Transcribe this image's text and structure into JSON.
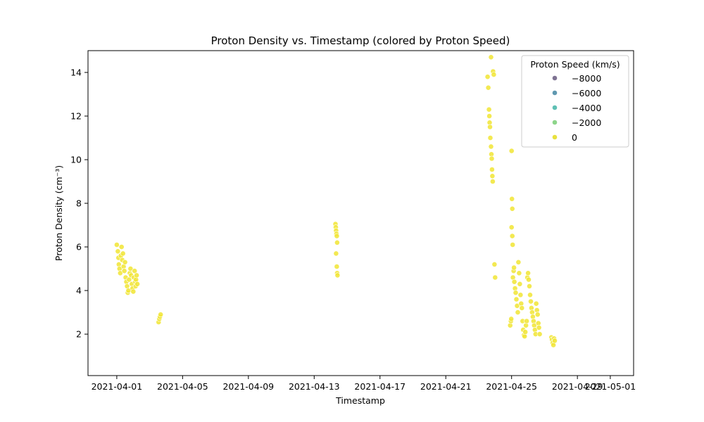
{
  "chart_data": {
    "type": "scatter",
    "title": "Proton Density vs. Timestamp (colored by Proton Speed)",
    "xlabel": "Timestamp",
    "ylabel": "Proton Density (cm⁻³)",
    "xlim": [
      "2021-03-30T06:00",
      "2021-05-02T10:00"
    ],
    "ylim": [
      0.1,
      15
    ],
    "x_ticks": [
      "2021-04-01",
      "2021-04-05",
      "2021-04-09",
      "2021-04-13",
      "2021-04-17",
      "2021-04-21",
      "2021-04-25",
      "2021-04-29",
      "2021-05-01"
    ],
    "y_ticks": [
      2,
      4,
      6,
      8,
      10,
      12,
      14
    ],
    "grid": false,
    "point_color": "#f1e534",
    "legend": {
      "title": "Proton Speed (km/s)",
      "placement": "top-right",
      "entries": [
        {
          "label": "−8000",
          "color": "#7f7393"
        },
        {
          "label": "−6000",
          "color": "#5f98b0"
        },
        {
          "label": "−4000",
          "color": "#5fc0b4"
        },
        {
          "label": "−2000",
          "color": "#8dd58a"
        },
        {
          "label": "0",
          "color": "#e8e13e"
        }
      ]
    },
    "points": [
      {
        "t": "2021-04-01T00:00",
        "y": 6.1
      },
      {
        "t": "2021-04-01T01:30",
        "y": 5.8
      },
      {
        "t": "2021-04-01T02:30",
        "y": 5.5
      },
      {
        "t": "2021-04-01T03:00",
        "y": 5.2
      },
      {
        "t": "2021-04-01T04:00",
        "y": 5.0
      },
      {
        "t": "2021-04-01T05:00",
        "y": 4.8
      },
      {
        "t": "2021-04-01T06:00",
        "y": 5.6
      },
      {
        "t": "2021-04-01T07:00",
        "y": 6.0
      },
      {
        "t": "2021-04-01T08:00",
        "y": 5.4
      },
      {
        "t": "2021-04-01T09:00",
        "y": 5.7
      },
      {
        "t": "2021-04-01T10:00",
        "y": 5.1
      },
      {
        "t": "2021-04-01T11:00",
        "y": 4.9
      },
      {
        "t": "2021-04-01T12:00",
        "y": 5.3
      },
      {
        "t": "2021-04-01T13:00",
        "y": 4.6
      },
      {
        "t": "2021-04-01T14:00",
        "y": 4.4
      },
      {
        "t": "2021-04-01T15:00",
        "y": 4.2
      },
      {
        "t": "2021-04-01T16:00",
        "y": 3.9
      },
      {
        "t": "2021-04-01T17:00",
        "y": 4.0
      },
      {
        "t": "2021-04-01T18:00",
        "y": 4.5
      },
      {
        "t": "2021-04-01T19:00",
        "y": 4.8
      },
      {
        "t": "2021-04-01T20:00",
        "y": 5.0
      },
      {
        "t": "2021-04-01T21:00",
        "y": 4.7
      },
      {
        "t": "2021-04-01T22:00",
        "y": 4.3
      },
      {
        "t": "2021-04-01T23:00",
        "y": 4.1
      },
      {
        "t": "2021-04-02T00:00",
        "y": 3.95
      },
      {
        "t": "2021-04-02T01:00",
        "y": 4.6
      },
      {
        "t": "2021-04-02T02:00",
        "y": 4.9
      },
      {
        "t": "2021-04-02T03:00",
        "y": 4.4
      },
      {
        "t": "2021-04-02T03:30",
        "y": 4.2
      },
      {
        "t": "2021-04-02T04:00",
        "y": 4.5
      },
      {
        "t": "2021-04-02T05:00",
        "y": 4.7
      },
      {
        "t": "2021-04-02T06:00",
        "y": 4.3
      },
      {
        "t": "2021-04-03T13:00",
        "y": 2.55
      },
      {
        "t": "2021-04-03T14:00",
        "y": 2.7
      },
      {
        "t": "2021-04-03T15:00",
        "y": 2.8
      },
      {
        "t": "2021-04-03T16:00",
        "y": 2.9
      },
      {
        "t": "2021-04-14T07:00",
        "y": 7.05
      },
      {
        "t": "2021-04-14T07:30",
        "y": 6.9
      },
      {
        "t": "2021-04-14T08:00",
        "y": 6.75
      },
      {
        "t": "2021-04-14T08:30",
        "y": 6.6
      },
      {
        "t": "2021-04-14T09:00",
        "y": 6.5
      },
      {
        "t": "2021-04-14T09:30",
        "y": 6.2
      },
      {
        "t": "2021-04-14T08:00",
        "y": 5.7
      },
      {
        "t": "2021-04-14T09:00",
        "y": 5.1
      },
      {
        "t": "2021-04-14T09:30",
        "y": 4.8
      },
      {
        "t": "2021-04-14T10:00",
        "y": 4.7
      },
      {
        "t": "2021-04-23T13:00",
        "y": 13.8
      },
      {
        "t": "2021-04-23T14:00",
        "y": 13.3
      },
      {
        "t": "2021-04-23T15:00",
        "y": 12.3
      },
      {
        "t": "2021-04-23T15:30",
        "y": 12.0
      },
      {
        "t": "2021-04-23T16:00",
        "y": 11.7
      },
      {
        "t": "2021-04-23T16:30",
        "y": 11.5
      },
      {
        "t": "2021-04-23T17:00",
        "y": 11.0
      },
      {
        "t": "2021-04-23T18:00",
        "y": 10.6
      },
      {
        "t": "2021-04-23T18:30",
        "y": 10.25
      },
      {
        "t": "2021-04-23T19:00",
        "y": 10.05
      },
      {
        "t": "2021-04-23T19:30",
        "y": 9.55
      },
      {
        "t": "2021-04-23T20:00",
        "y": 9.25
      },
      {
        "t": "2021-04-23T20:30",
        "y": 9.0
      },
      {
        "t": "2021-04-23T18:00",
        "y": 14.7
      },
      {
        "t": "2021-04-23T21:00",
        "y": 14.05
      },
      {
        "t": "2021-04-23T22:00",
        "y": 13.9
      },
      {
        "t": "2021-04-23T23:00",
        "y": 5.2
      },
      {
        "t": "2021-04-24T00:00",
        "y": 4.6
      },
      {
        "t": "2021-04-24T22:00",
        "y": 2.4
      },
      {
        "t": "2021-04-24T23:00",
        "y": 2.6
      },
      {
        "t": "2021-04-24T23:30",
        "y": 2.7
      },
      {
        "t": "2021-04-25T00:00",
        "y": 10.4
      },
      {
        "t": "2021-04-25T00:30",
        "y": 8.2
      },
      {
        "t": "2021-04-25T01:00",
        "y": 7.75
      },
      {
        "t": "2021-04-25T00:00",
        "y": 6.9
      },
      {
        "t": "2021-04-25T01:00",
        "y": 6.5
      },
      {
        "t": "2021-04-25T01:30",
        "y": 6.1
      },
      {
        "t": "2021-04-25T02:00",
        "y": 4.6
      },
      {
        "t": "2021-04-25T03:00",
        "y": 4.9
      },
      {
        "t": "2021-04-25T03:30",
        "y": 5.05
      },
      {
        "t": "2021-04-25T04:00",
        "y": 4.4
      },
      {
        "t": "2021-04-25T05:00",
        "y": 4.1
      },
      {
        "t": "2021-04-25T06:00",
        "y": 3.9
      },
      {
        "t": "2021-04-25T07:00",
        "y": 3.6
      },
      {
        "t": "2021-04-25T08:00",
        "y": 3.3
      },
      {
        "t": "2021-04-25T09:00",
        "y": 3.0
      },
      {
        "t": "2021-04-25T10:00",
        "y": 5.3
      },
      {
        "t": "2021-04-25T11:00",
        "y": 4.8
      },
      {
        "t": "2021-04-25T12:00",
        "y": 4.3
      },
      {
        "t": "2021-04-25T13:00",
        "y": 3.8
      },
      {
        "t": "2021-04-25T14:00",
        "y": 3.4
      },
      {
        "t": "2021-04-25T15:00",
        "y": 3.2
      },
      {
        "t": "2021-04-25T16:00",
        "y": 2.6
      },
      {
        "t": "2021-04-25T17:00",
        "y": 2.2
      },
      {
        "t": "2021-04-25T18:00",
        "y": 1.95
      },
      {
        "t": "2021-04-25T19:00",
        "y": 1.9
      },
      {
        "t": "2021-04-25T20:00",
        "y": 2.1
      },
      {
        "t": "2021-04-25T21:00",
        "y": 2.4
      },
      {
        "t": "2021-04-25T22:00",
        "y": 2.6
      },
      {
        "t": "2021-04-25T23:00",
        "y": 4.6
      },
      {
        "t": "2021-04-26T00:00",
        "y": 4.8
      },
      {
        "t": "2021-04-26T01:00",
        "y": 4.5
      },
      {
        "t": "2021-04-26T02:00",
        "y": 4.2
      },
      {
        "t": "2021-04-26T03:00",
        "y": 3.8
      },
      {
        "t": "2021-04-26T04:00",
        "y": 3.5
      },
      {
        "t": "2021-04-26T05:00",
        "y": 3.2
      },
      {
        "t": "2021-04-26T06:00",
        "y": 3.0
      },
      {
        "t": "2021-04-26T07:00",
        "y": 2.8
      },
      {
        "t": "2021-04-26T08:00",
        "y": 2.6
      },
      {
        "t": "2021-04-26T09:00",
        "y": 2.4
      },
      {
        "t": "2021-04-26T10:00",
        "y": 2.2
      },
      {
        "t": "2021-04-26T11:00",
        "y": 2.0
      },
      {
        "t": "2021-04-26T12:00",
        "y": 3.4
      },
      {
        "t": "2021-04-26T13:00",
        "y": 3.1
      },
      {
        "t": "2021-04-26T14:00",
        "y": 2.9
      },
      {
        "t": "2021-04-26T15:00",
        "y": 2.5
      },
      {
        "t": "2021-04-26T16:00",
        "y": 2.3
      },
      {
        "t": "2021-04-26T17:00",
        "y": 2.0
      },
      {
        "t": "2021-04-27T10:00",
        "y": 1.85
      },
      {
        "t": "2021-04-27T11:00",
        "y": 1.75
      },
      {
        "t": "2021-04-27T12:00",
        "y": 1.6
      },
      {
        "t": "2021-04-27T13:00",
        "y": 1.5
      },
      {
        "t": "2021-04-27T14:00",
        "y": 1.8
      },
      {
        "t": "2021-04-27T15:00",
        "y": 1.7
      }
    ]
  }
}
